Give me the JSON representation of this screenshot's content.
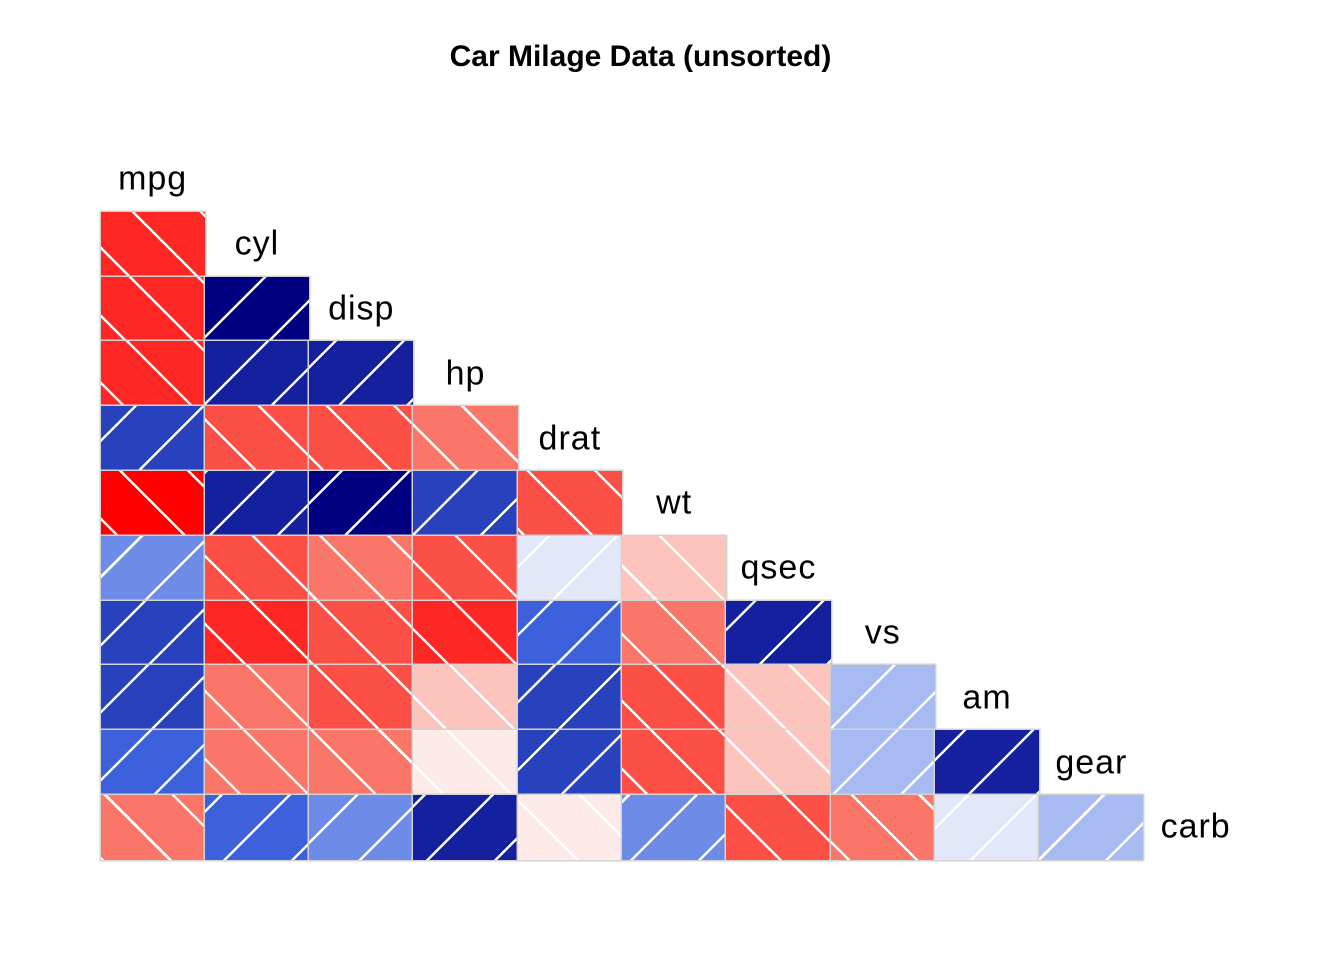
{
  "title": "Car Milage Data (unsorted)",
  "style": {
    "background": "#FFFFFF",
    "cell_border_color": "#D3D3D3",
    "hatch_line_color": "#FFFFFF",
    "text_color": "#000000",
    "palette_negative_strong": "#FF0000",
    "palette_neutral": "#FEEBE9",
    "palette_positive_strong": "#000080"
  },
  "chart_data": {
    "type": "heatmap",
    "subtype": "correlation-corrgram-lower-triangle",
    "title": "Car Milage Data (unsorted)",
    "legend": "none",
    "hatch_rule": "positive values use / diagonal white lines, negative values use \\ diagonal white lines",
    "color_rule": "quantized diverging ramp red-salmon-white-royalblue-navy over [-1,1]",
    "variables": [
      "mpg",
      "cyl",
      "disp",
      "hp",
      "drat",
      "wt",
      "qsec",
      "vs",
      "am",
      "gear",
      "carb"
    ],
    "rows": [
      {
        "name": "cyl",
        "values": [
          -0.85
        ],
        "colors": [
          "#FE2723"
        ]
      },
      {
        "name": "disp",
        "values": [
          -0.85,
          0.9
        ],
        "colors": [
          "#FE2723",
          "#000080"
        ]
      },
      {
        "name": "hp",
        "values": [
          -0.78,
          0.83,
          0.79
        ],
        "colors": [
          "#FE2723",
          "#14209E",
          "#14209E"
        ]
      },
      {
        "name": "drat",
        "values": [
          0.68,
          -0.7,
          -0.71,
          -0.45
        ],
        "colors": [
          "#2841BC",
          "#FC4F46",
          "#FC4F46",
          "#FA7669"
        ]
      },
      {
        "name": "wt",
        "values": [
          -0.87,
          0.78,
          0.89,
          0.66,
          -0.71
        ],
        "colors": [
          "#FF0000",
          "#14209E",
          "#000080",
          "#2841BC",
          "#FC4F46"
        ]
      },
      {
        "name": "qsec",
        "values": [
          0.42,
          -0.59,
          -0.43,
          -0.71,
          0.09,
          -0.17
        ],
        "colors": [
          "#6D8CE8",
          "#FC4F46",
          "#FA7669",
          "#FC4F46",
          "#E2E8FA",
          "#FDC4BE"
        ]
      },
      {
        "name": "vs",
        "values": [
          0.66,
          -0.81,
          -0.71,
          -0.72,
          0.44,
          -0.55,
          0.74
        ],
        "colors": [
          "#2841BC",
          "#FE2723",
          "#FC4F46",
          "#FE2723",
          "#3C61DA",
          "#FA7669",
          "#14209E"
        ]
      },
      {
        "name": "am",
        "values": [
          0.6,
          -0.52,
          -0.59,
          -0.24,
          0.71,
          -0.69,
          -0.23,
          0.17
        ],
        "colors": [
          "#2841BC",
          "#FA7669",
          "#FC4F46",
          "#FDC4BE",
          "#2841BC",
          "#FC4F46",
          "#FDC4BE",
          "#A7BAF1"
        ]
      },
      {
        "name": "gear",
        "values": [
          0.48,
          -0.49,
          -0.56,
          -0.13,
          0.7,
          -0.58,
          -0.21,
          0.21,
          0.79
        ],
        "colors": [
          "#3C61DA",
          "#FA7669",
          "#FA7669",
          "#FEEBE9",
          "#2841BC",
          "#FC4F46",
          "#FDC4BE",
          "#A7BAF1",
          "#14209E"
        ]
      },
      {
        "name": "carb",
        "values": [
          -0.55,
          0.53,
          0.39,
          0.75,
          -0.09,
          0.43,
          -0.66,
          -0.57,
          0.06,
          0.27
        ],
        "colors": [
          "#FA7669",
          "#3C61DA",
          "#6D8CE8",
          "#14209E",
          "#FEEBE9",
          "#6D8CE8",
          "#FC4F46",
          "#FA7669",
          "#E2E8FA",
          "#A7BAF1"
        ]
      }
    ]
  }
}
